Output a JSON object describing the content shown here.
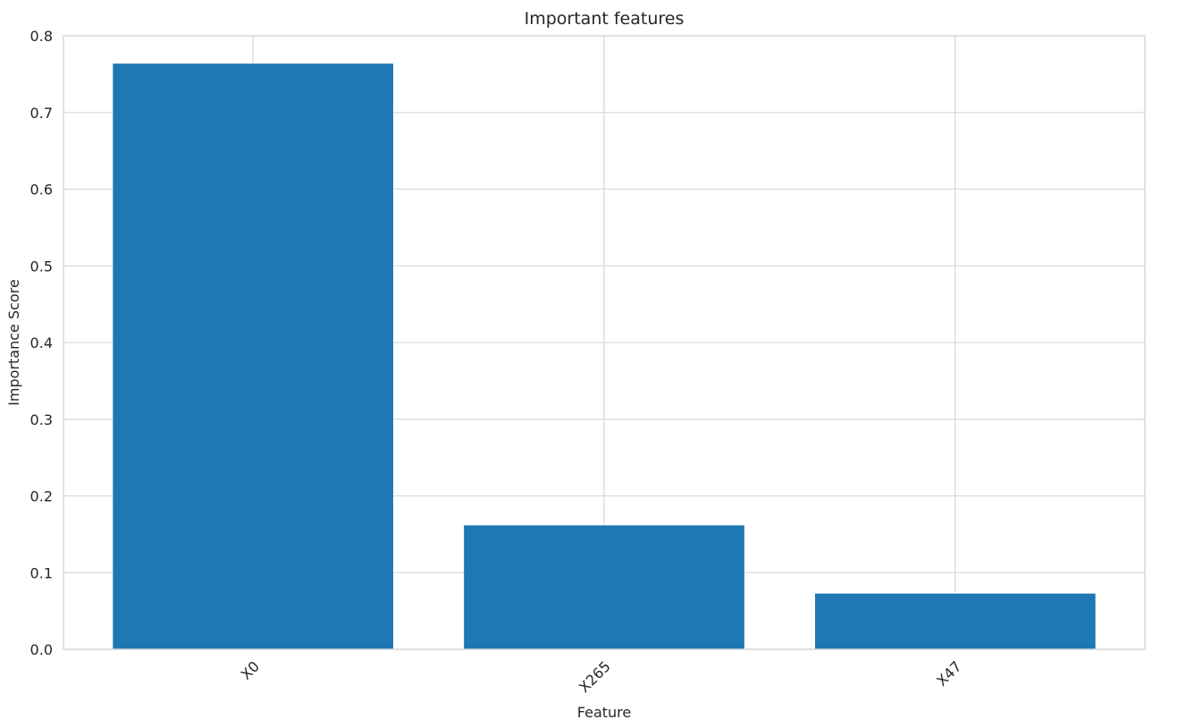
{
  "chart_data": {
    "type": "bar",
    "title": "Important features",
    "xlabel": "Feature",
    "ylabel": "Importance Score",
    "categories": [
      "X0",
      "X265",
      "X47"
    ],
    "values": [
      0.764,
      0.162,
      0.073
    ],
    "ylim": [
      0,
      0.8
    ],
    "yticks": [
      "0.0",
      "0.1",
      "0.2",
      "0.3",
      "0.4",
      "0.5",
      "0.6",
      "0.7",
      "0.8"
    ],
    "xtick_rotation": 45,
    "grid": true,
    "bar_color": "#1f77b4",
    "grid_color": "#d9d9d9"
  }
}
